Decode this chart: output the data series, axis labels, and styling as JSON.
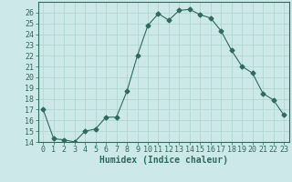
{
  "x": [
    0,
    1,
    2,
    3,
    4,
    5,
    6,
    7,
    8,
    9,
    10,
    11,
    12,
    13,
    14,
    15,
    16,
    17,
    18,
    19,
    20,
    21,
    22,
    23
  ],
  "y": [
    17.0,
    14.3,
    14.2,
    14.0,
    15.0,
    15.2,
    16.3,
    16.3,
    18.7,
    22.0,
    24.8,
    25.9,
    25.3,
    26.2,
    26.3,
    25.8,
    25.5,
    24.3,
    22.5,
    21.0,
    20.4,
    18.5,
    17.9,
    16.5
  ],
  "line_color": "#2e6b5e",
  "marker": "D",
  "marker_size": 2.5,
  "bg_color": "#cce8e8",
  "grid_color": "#b0d8d0",
  "xlabel": "Humidex (Indice chaleur)",
  "ylim": [
    14,
    27
  ],
  "xlim": [
    -0.5,
    23.5
  ],
  "yticks": [
    14,
    15,
    16,
    17,
    18,
    19,
    20,
    21,
    22,
    23,
    24,
    25,
    26
  ],
  "xticks": [
    0,
    1,
    2,
    3,
    4,
    5,
    6,
    7,
    8,
    9,
    10,
    11,
    12,
    13,
    14,
    15,
    16,
    17,
    18,
    19,
    20,
    21,
    22,
    23
  ],
  "tick_color": "#2e6b5e",
  "label_fontsize": 7,
  "tick_fontsize": 6
}
